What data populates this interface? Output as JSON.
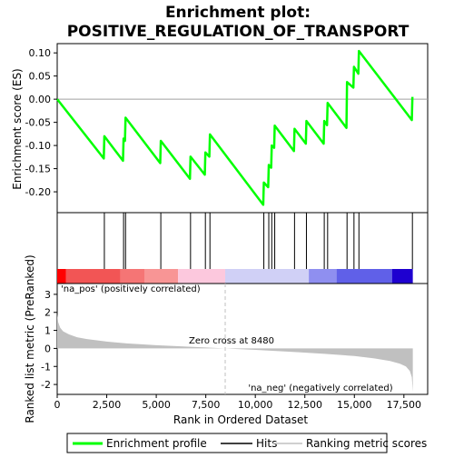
{
  "chart_data": {
    "type": "line",
    "title_line1": "Enrichment plot:",
    "title_line2": "POSITIVE_REGULATION_OF_TRANSPORT",
    "top_panel": {
      "ylabel": "Enrichment score (ES)",
      "ylim": [
        -0.245,
        0.12
      ],
      "yticks": [
        "0.10",
        "0.05",
        "0.00",
        "-0.05",
        "-0.10",
        "-0.15",
        "-0.20"
      ],
      "ytick_values": [
        0.1,
        0.05,
        0.0,
        -0.05,
        -0.1,
        -0.15,
        -0.2
      ],
      "series": {
        "name": "Enrichment profile",
        "x": [
          0,
          2350,
          2380,
          3320,
          3350,
          3420,
          3450,
          5200,
          5230,
          6700,
          6730,
          7450,
          7480,
          7680,
          7710,
          10400,
          10430,
          10650,
          10680,
          10800,
          10830,
          10950,
          10980,
          11950,
          11980,
          12550,
          12580,
          13450,
          13480,
          13620,
          13650,
          14600,
          14630,
          14950,
          14980,
          15200,
          15230,
          17900,
          17930
        ],
        "y": [
          0.0,
          -0.128,
          -0.08,
          -0.133,
          -0.085,
          -0.09,
          -0.04,
          -0.138,
          -0.09,
          -0.172,
          -0.124,
          -0.163,
          -0.115,
          -0.124,
          -0.076,
          -0.228,
          -0.18,
          -0.19,
          -0.142,
          -0.148,
          -0.1,
          -0.105,
          -0.057,
          -0.112,
          -0.064,
          -0.096,
          -0.047,
          -0.096,
          -0.047,
          -0.056,
          -0.008,
          -0.062,
          0.037,
          0.025,
          0.07,
          0.055,
          0.104,
          -0.045,
          0.005
        ]
      }
    },
    "hits": [
      2380,
      3350,
      3450,
      5230,
      6730,
      7480,
      7710,
      10430,
      10680,
      10830,
      10980,
      11980,
      12580,
      13480,
      13650,
      14630,
      14980,
      15230,
      17930
    ],
    "bar_segments": [
      {
        "x0": 0,
        "x1": 450,
        "color": "#ff0000"
      },
      {
        "x0": 450,
        "x1": 3200,
        "color": "#f25555"
      },
      {
        "x0": 3200,
        "x1": 4400,
        "color": "#f57575"
      },
      {
        "x0": 4400,
        "x1": 6100,
        "color": "#f89595"
      },
      {
        "x0": 6100,
        "x1": 8480,
        "color": "#fcc8dd"
      },
      {
        "x0": 8480,
        "x1": 12700,
        "color": "#d0d0f6"
      },
      {
        "x0": 12700,
        "x1": 14100,
        "color": "#8f8ff0"
      },
      {
        "x0": 14100,
        "x1": 16900,
        "color": "#6060e8"
      },
      {
        "x0": 16900,
        "x1": 17950,
        "color": "#1e00d0"
      }
    ],
    "bottom_panel": {
      "ylabel": "Ranked list metric (PreRanked)",
      "ylim": [
        -2.55,
        3.6
      ],
      "yticks": [
        "3",
        "2",
        "1",
        "0",
        "-1",
        "-2"
      ],
      "ytick_values": [
        3,
        2,
        1,
        0,
        -1,
        -2
      ],
      "metric_curve": {
        "x": [
          0,
          50,
          150,
          300,
          600,
          1000,
          1500,
          2500,
          3500,
          5000,
          6500,
          8480,
          10000,
          12000,
          13500,
          15000,
          16000,
          16800,
          17300,
          17600,
          17800,
          17900,
          17950
        ],
        "y": [
          1.9,
          1.45,
          1.15,
          0.95,
          0.78,
          0.62,
          0.52,
          0.38,
          0.28,
          0.18,
          0.1,
          0.0,
          -0.08,
          -0.2,
          -0.3,
          -0.42,
          -0.55,
          -0.7,
          -0.85,
          -1.0,
          -1.25,
          -1.6,
          -2.4
        ]
      },
      "zero_cross_label": "Zero cross at 8480",
      "zero_cross_x": 8480,
      "pos_label": "'na_pos' (positively correlated)",
      "neg_label": "'na_neg' (negatively correlated)"
    },
    "xlabel": "Rank in Ordered Dataset",
    "xlim": [
      0,
      18700
    ],
    "xticks": [
      "0",
      "2,500",
      "5,000",
      "7,500",
      "10,000",
      "12,500",
      "15,000",
      "17,500"
    ],
    "xtick_values": [
      0,
      2500,
      5000,
      7500,
      10000,
      12500,
      15000,
      17500
    ],
    "legend": {
      "placement": "bottom",
      "items": [
        "Enrichment profile",
        "Hits",
        "Ranking metric scores"
      ]
    },
    "colors": {
      "profile": "#00ff00",
      "hits": "#000000",
      "metric_fill": "#c0c0c0",
      "zero_line": "#c0c0c0",
      "pos_text": "#ff0000",
      "neg_text": "#0000ff"
    }
  }
}
